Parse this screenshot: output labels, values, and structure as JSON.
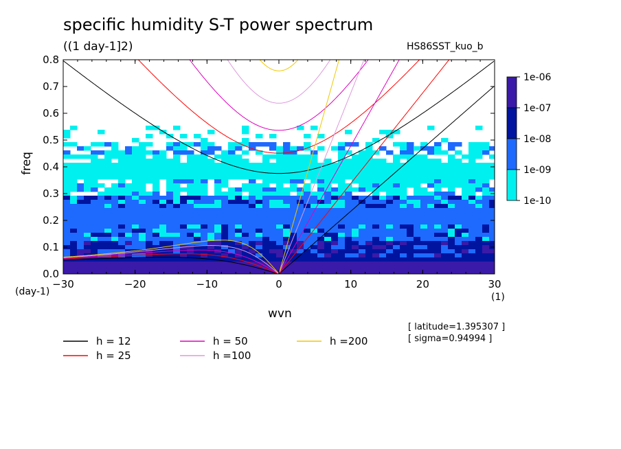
{
  "header": {
    "title": "specific humidity S-T power spectrum",
    "units": "((1 day-1]2)",
    "run_name": "HS86SST_kuo_b"
  },
  "axes": {
    "xlabel": "wvn",
    "ylabel": "freq",
    "x_unit": "(1)",
    "y_unit": "(day-1)"
  },
  "info": {
    "latitude": "[ latitude=1.395307 ]",
    "sigma": "[ sigma=0.94994 ]"
  },
  "colorbar": {
    "labels": [
      "1e-06",
      "1e-07",
      "1e-08",
      "1e-09",
      "1e-10"
    ],
    "colors": [
      "#3a1aa8",
      "#0014a0",
      "#1e6aff",
      "#00f0f0"
    ]
  },
  "chart_data": {
    "type": "heatmap",
    "title": "specific humidity S-T power spectrum",
    "xlabel": "wvn",
    "ylabel": "freq",
    "xlim": [
      -30,
      30
    ],
    "ylim": [
      0,
      0.8
    ],
    "x_ticks": [
      -30,
      -20,
      -10,
      0,
      10,
      20,
      30
    ],
    "y_ticks": [
      0.0,
      0.1,
      0.2,
      0.3,
      0.4,
      0.5,
      0.6,
      0.7,
      0.8
    ],
    "contour_levels": [
      "1e-10",
      "1e-09",
      "1e-08",
      "1e-07",
      "1e-06"
    ],
    "level_colors": [
      "#00f0f0",
      "#1e6aff",
      "#0014a0",
      "#3a1aa8"
    ],
    "approx_level_boundaries": [
      {
        "level": "1e-10",
        "freq_upper": 0.5
      },
      {
        "level": "1e-09",
        "freq_upper": 0.3
      },
      {
        "level": "1e-08",
        "freq_upper": 0.12
      }
    ],
    "dispersion_curves": [
      {
        "name": "h = 12",
        "color": "#000000"
      },
      {
        "name": "h = 25",
        "color": "#ff0000"
      },
      {
        "name": "h = 50",
        "color": "#e000c0"
      },
      {
        "name": "h =100",
        "color": "#dd99dd"
      },
      {
        "name": "h =200",
        "color": "#f0c800"
      }
    ]
  }
}
